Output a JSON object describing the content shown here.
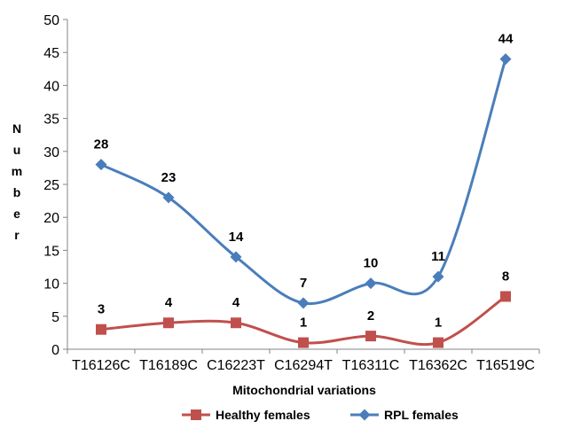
{
  "chart_data": {
    "type": "line",
    "title": "",
    "xlabel": "Mitochondrial variations",
    "ylabel": "Number",
    "ylim": [
      0,
      50
    ],
    "ytick_step": 5,
    "categories": [
      "T16126C",
      "T16189C",
      "C16223T",
      "C16294T",
      "T16311C",
      "T16362C",
      "T16519C"
    ],
    "series": [
      {
        "name": "Healthy females",
        "color": "#c0504d",
        "marker": "square",
        "values": [
          3,
          4,
          4,
          1,
          2,
          1,
          8
        ]
      },
      {
        "name": "RPL females",
        "color": "#4a7ebb",
        "marker": "diamond",
        "values": [
          28,
          23,
          14,
          7,
          10,
          11,
          44
        ]
      }
    ],
    "data_labels": true,
    "grid": false,
    "legend_position": "bottom"
  }
}
